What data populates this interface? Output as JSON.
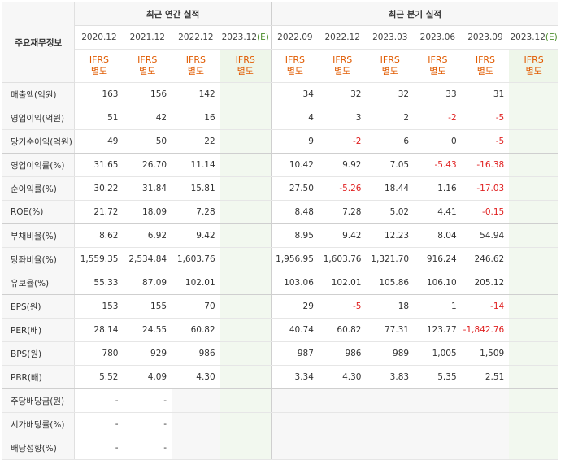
{
  "header": {
    "row_label": "주요재무정보",
    "annual_title": "최근 연간 실적",
    "quarter_title": "최근 분기 실적",
    "annual_periods": [
      "2020.12",
      "2021.12",
      "2022.12",
      "2023.12"
    ],
    "annual_est_mark": "(E)",
    "quarter_periods": [
      "2022.09",
      "2022.12",
      "2023.03",
      "2023.06",
      "2023.09",
      "2023.12"
    ],
    "quarter_est_mark": "(E)",
    "ifrs": "IFRS",
    "sep": "별도"
  },
  "rows": [
    {
      "label": "매출액(억원)",
      "a": [
        "163",
        "156",
        "142",
        ""
      ],
      "q": [
        "34",
        "32",
        "32",
        "33",
        "31",
        ""
      ]
    },
    {
      "label": "영업이익(억원)",
      "a": [
        "51",
        "42",
        "16",
        ""
      ],
      "q": [
        "4",
        "3",
        "2",
        "-2",
        "-5",
        ""
      ]
    },
    {
      "label": "당기순이익(억원)",
      "a": [
        "49",
        "50",
        "22",
        ""
      ],
      "q": [
        "9",
        "-2",
        "6",
        "0",
        "-5",
        ""
      ]
    },
    {
      "label": "영업이익률(%)",
      "a": [
        "31.65",
        "26.70",
        "11.14",
        ""
      ],
      "q": [
        "10.42",
        "9.92",
        "7.05",
        "-5.43",
        "-16.38",
        ""
      ]
    },
    {
      "label": "순이익률(%)",
      "a": [
        "30.22",
        "31.84",
        "15.81",
        ""
      ],
      "q": [
        "27.50",
        "-5.26",
        "18.44",
        "1.16",
        "-17.03",
        ""
      ]
    },
    {
      "label": "ROE(%)",
      "a": [
        "21.72",
        "18.09",
        "7.28",
        ""
      ],
      "q": [
        "8.48",
        "7.28",
        "5.02",
        "4.41",
        "-0.15",
        ""
      ]
    },
    {
      "label": "부채비율(%)",
      "a": [
        "8.62",
        "6.92",
        "9.42",
        ""
      ],
      "q": [
        "8.95",
        "9.42",
        "12.23",
        "8.04",
        "54.94",
        ""
      ]
    },
    {
      "label": "당좌비율(%)",
      "a": [
        "1,559.35",
        "2,534.84",
        "1,603.76",
        ""
      ],
      "q": [
        "1,956.95",
        "1,603.76",
        "1,321.70",
        "916.24",
        "246.62",
        ""
      ]
    },
    {
      "label": "유보율(%)",
      "a": [
        "55.33",
        "87.09",
        "102.01",
        ""
      ],
      "q": [
        "103.06",
        "102.01",
        "105.86",
        "106.10",
        "205.12",
        ""
      ]
    },
    {
      "label": "EPS(원)",
      "a": [
        "153",
        "155",
        "70",
        ""
      ],
      "q": [
        "29",
        "-5",
        "18",
        "1",
        "-14",
        ""
      ]
    },
    {
      "label": "PER(배)",
      "a": [
        "28.14",
        "24.55",
        "60.82",
        ""
      ],
      "q": [
        "40.74",
        "60.82",
        "77.31",
        "123.77",
        "-1,842.76",
        ""
      ]
    },
    {
      "label": "BPS(원)",
      "a": [
        "780",
        "929",
        "986",
        ""
      ],
      "q": [
        "987",
        "986",
        "989",
        "1,005",
        "1,509",
        ""
      ]
    },
    {
      "label": "PBR(배)",
      "a": [
        "5.52",
        "4.09",
        "4.30",
        ""
      ],
      "q": [
        "3.34",
        "4.30",
        "3.83",
        "5.35",
        "2.51",
        ""
      ]
    },
    {
      "label": "주당배당금(원)",
      "a": [
        "-",
        "-",
        "",
        ""
      ],
      "q": [
        "",
        "",
        "",
        "",
        "",
        ""
      ]
    },
    {
      "label": "시가배당률(%)",
      "a": [
        "-",
        "-",
        "",
        ""
      ],
      "q": [
        "",
        "",
        "",
        "",
        "",
        ""
      ]
    },
    {
      "label": "배당성향(%)",
      "a": [
        "-",
        "-",
        "",
        ""
      ],
      "q": [
        "",
        "",
        "",
        "",
        "",
        ""
      ]
    }
  ]
}
